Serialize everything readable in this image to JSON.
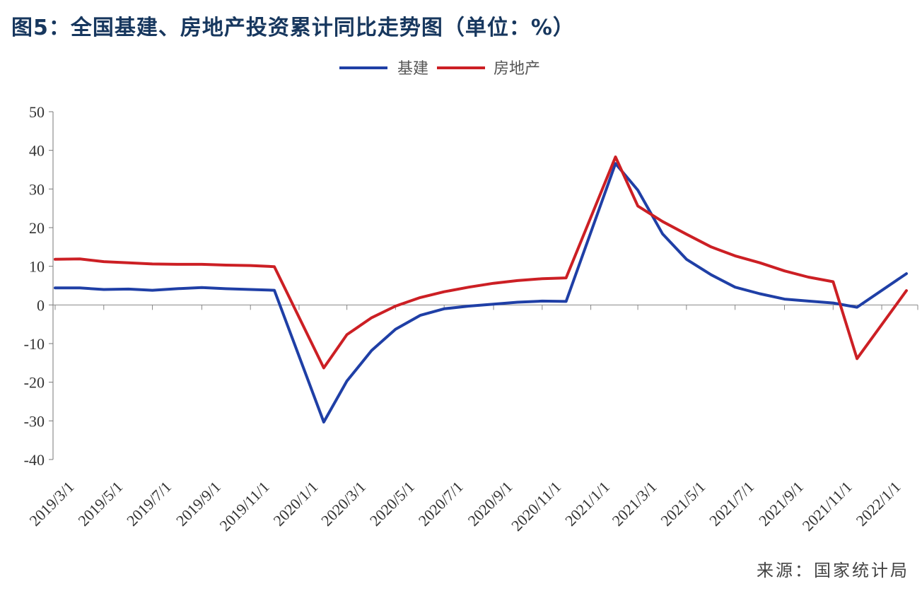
{
  "title": "图5：全国基建、房地产投资累计同比走势图（单位：%）",
  "source": "来源：国家统计局",
  "chart_data": {
    "type": "line",
    "title": "图5：全国基建、房地产投资累计同比走势图（单位：%）",
    "xlabel": "",
    "ylabel": "",
    "ylim": [
      -40,
      50
    ],
    "yticks": [
      50,
      40,
      30,
      20,
      10,
      0,
      -10,
      -20,
      -30,
      -40
    ],
    "grid": false,
    "legend_position": "top-center",
    "x_tick_labels": [
      "2019/3/1",
      "2019/5/1",
      "2019/7/1",
      "2019/9/1",
      "2019/11/1",
      "2020/1/1",
      "2020/3/1",
      "2020/5/1",
      "2020/7/1",
      "2020/9/1",
      "2020/11/1",
      "2021/1/1",
      "2021/3/1",
      "2021/5/1",
      "2021/7/1",
      "2021/9/1",
      "2021/11/1",
      "2022/1/1"
    ],
    "series": [
      {
        "name": "基建",
        "color": "#1f3fa6",
        "points": [
          [
            "2019/3/1",
            4.4
          ],
          [
            "2019/4/1",
            4.4
          ],
          [
            "2019/5/1",
            4.0
          ],
          [
            "2019/6/1",
            4.1
          ],
          [
            "2019/7/1",
            3.8
          ],
          [
            "2019/8/1",
            4.2
          ],
          [
            "2019/9/1",
            4.5
          ],
          [
            "2019/10/1",
            4.2
          ],
          [
            "2019/11/1",
            4.0
          ],
          [
            "2019/12/1",
            3.8
          ],
          [
            "2020/2/1",
            -30.3
          ],
          [
            "2020/3/1",
            -19.7
          ],
          [
            "2020/4/1",
            -11.8
          ],
          [
            "2020/5/1",
            -6.3
          ],
          [
            "2020/6/1",
            -2.7
          ],
          [
            "2020/7/1",
            -1.0
          ],
          [
            "2020/8/1",
            -0.3
          ],
          [
            "2020/9/1",
            0.2
          ],
          [
            "2020/10/1",
            0.7
          ],
          [
            "2020/11/1",
            1.0
          ],
          [
            "2020/12/1",
            0.9
          ],
          [
            "2021/2/1",
            36.6
          ],
          [
            "2021/3/1",
            29.7
          ],
          [
            "2021/4/1",
            18.4
          ],
          [
            "2021/5/1",
            11.8
          ],
          [
            "2021/6/1",
            7.8
          ],
          [
            "2021/7/1",
            4.6
          ],
          [
            "2021/8/1",
            2.9
          ],
          [
            "2021/9/1",
            1.5
          ],
          [
            "2021/10/1",
            1.0
          ],
          [
            "2021/11/1",
            0.5
          ],
          [
            "2021/12/1",
            -0.6
          ],
          [
            "2022/2/1",
            8.1
          ]
        ]
      },
      {
        "name": "房地产",
        "color": "#cc1f24",
        "points": [
          [
            "2019/3/1",
            11.8
          ],
          [
            "2019/4/1",
            11.9
          ],
          [
            "2019/5/1",
            11.2
          ],
          [
            "2019/6/1",
            10.9
          ],
          [
            "2019/7/1",
            10.6
          ],
          [
            "2019/8/1",
            10.5
          ],
          [
            "2019/9/1",
            10.5
          ],
          [
            "2019/10/1",
            10.3
          ],
          [
            "2019/11/1",
            10.2
          ],
          [
            "2019/12/1",
            9.9
          ],
          [
            "2020/2/1",
            -16.3
          ],
          [
            "2020/3/1",
            -7.7
          ],
          [
            "2020/4/1",
            -3.3
          ],
          [
            "2020/5/1",
            -0.3
          ],
          [
            "2020/6/1",
            1.9
          ],
          [
            "2020/7/1",
            3.4
          ],
          [
            "2020/8/1",
            4.6
          ],
          [
            "2020/9/1",
            5.6
          ],
          [
            "2020/10/1",
            6.3
          ],
          [
            "2020/11/1",
            6.8
          ],
          [
            "2020/12/1",
            7.0
          ],
          [
            "2021/2/1",
            38.3
          ],
          [
            "2021/3/1",
            25.6
          ],
          [
            "2021/4/1",
            21.6
          ],
          [
            "2021/5/1",
            18.3
          ],
          [
            "2021/6/1",
            15.0
          ],
          [
            "2021/7/1",
            12.7
          ],
          [
            "2021/8/1",
            10.9
          ],
          [
            "2021/9/1",
            8.8
          ],
          [
            "2021/10/1",
            7.2
          ],
          [
            "2021/11/1",
            6.0
          ],
          [
            "2021/12/1",
            -13.9
          ],
          [
            "2022/2/1",
            3.7
          ]
        ]
      }
    ]
  }
}
